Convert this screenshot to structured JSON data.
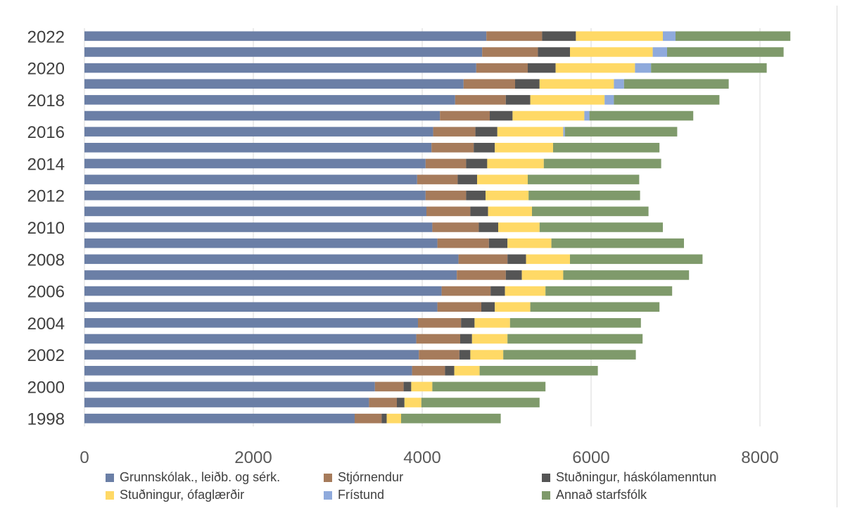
{
  "chart_data": {
    "type": "bar",
    "orientation": "horizontal",
    "stacked": true,
    "title": "",
    "xlabel": "",
    "ylabel": "",
    "xlim": [
      0,
      8400
    ],
    "x_ticks": [
      "0",
      "2000",
      "4000",
      "6000",
      "8000"
    ],
    "grid": true,
    "legend_position": "bottom",
    "categories": [
      "1998",
      "1999",
      "2000",
      "2001",
      "2002",
      "2003",
      "2004",
      "2005",
      "2006",
      "2007",
      "2008",
      "2009",
      "2010",
      "2011",
      "2012",
      "2013",
      "2014",
      "2015",
      "2016",
      "2017",
      "2018",
      "2019",
      "2020",
      "2021",
      "2022"
    ],
    "category_labels": [
      "1998",
      "",
      "2000",
      "",
      "2002",
      "",
      "2004",
      "",
      "2006",
      "",
      "2008",
      "",
      "2010",
      "",
      "2012",
      "",
      "2014",
      "",
      "2016",
      "",
      "2018",
      "",
      "2020",
      "",
      "2022"
    ],
    "series": [
      {
        "name": "Grunnskólak., leiðb. og sérk.",
        "color": "#6b7fa6",
        "values": [
          3200,
          3370,
          3440,
          3880,
          3960,
          3930,
          3950,
          4180,
          4230,
          4410,
          4430,
          4180,
          4120,
          4050,
          4040,
          3940,
          4040,
          4110,
          4130,
          4210,
          4390,
          4490,
          4640,
          4710,
          4760
        ]
      },
      {
        "name": "Stjórnendur",
        "color": "#a67b5b",
        "values": [
          320,
          330,
          340,
          390,
          480,
          520,
          510,
          520,
          580,
          580,
          580,
          610,
          550,
          520,
          480,
          480,
          480,
          500,
          500,
          590,
          600,
          610,
          610,
          660,
          660
        ]
      },
      {
        "name": "Stuðningur, háskólamenntun",
        "color": "#555555",
        "values": [
          60,
          90,
          90,
          110,
          130,
          140,
          160,
          160,
          170,
          190,
          220,
          220,
          230,
          210,
          230,
          230,
          250,
          250,
          260,
          270,
          290,
          290,
          330,
          380,
          400
        ]
      },
      {
        "name": "Stuðningur, ófaglærðir",
        "color": "#ffd966",
        "values": [
          170,
          200,
          250,
          300,
          390,
          420,
          420,
          420,
          480,
          490,
          520,
          520,
          490,
          520,
          510,
          600,
          670,
          690,
          780,
          850,
          880,
          880,
          940,
          980,
          1030
        ]
      },
      {
        "name": "Frístund",
        "color": "#8faadc",
        "values": [
          0,
          0,
          0,
          0,
          0,
          0,
          0,
          0,
          0,
          0,
          0,
          0,
          0,
          0,
          0,
          0,
          0,
          0,
          20,
          60,
          110,
          120,
          190,
          170,
          150
        ]
      },
      {
        "name": "Annað starfsfólk",
        "color": "#7f9a6b",
        "values": [
          1180,
          1400,
          1340,
          1400,
          1570,
          1600,
          1550,
          1530,
          1500,
          1490,
          1570,
          1570,
          1460,
          1380,
          1320,
          1320,
          1390,
          1260,
          1330,
          1230,
          1250,
          1240,
          1370,
          1380,
          1360
        ]
      }
    ]
  }
}
